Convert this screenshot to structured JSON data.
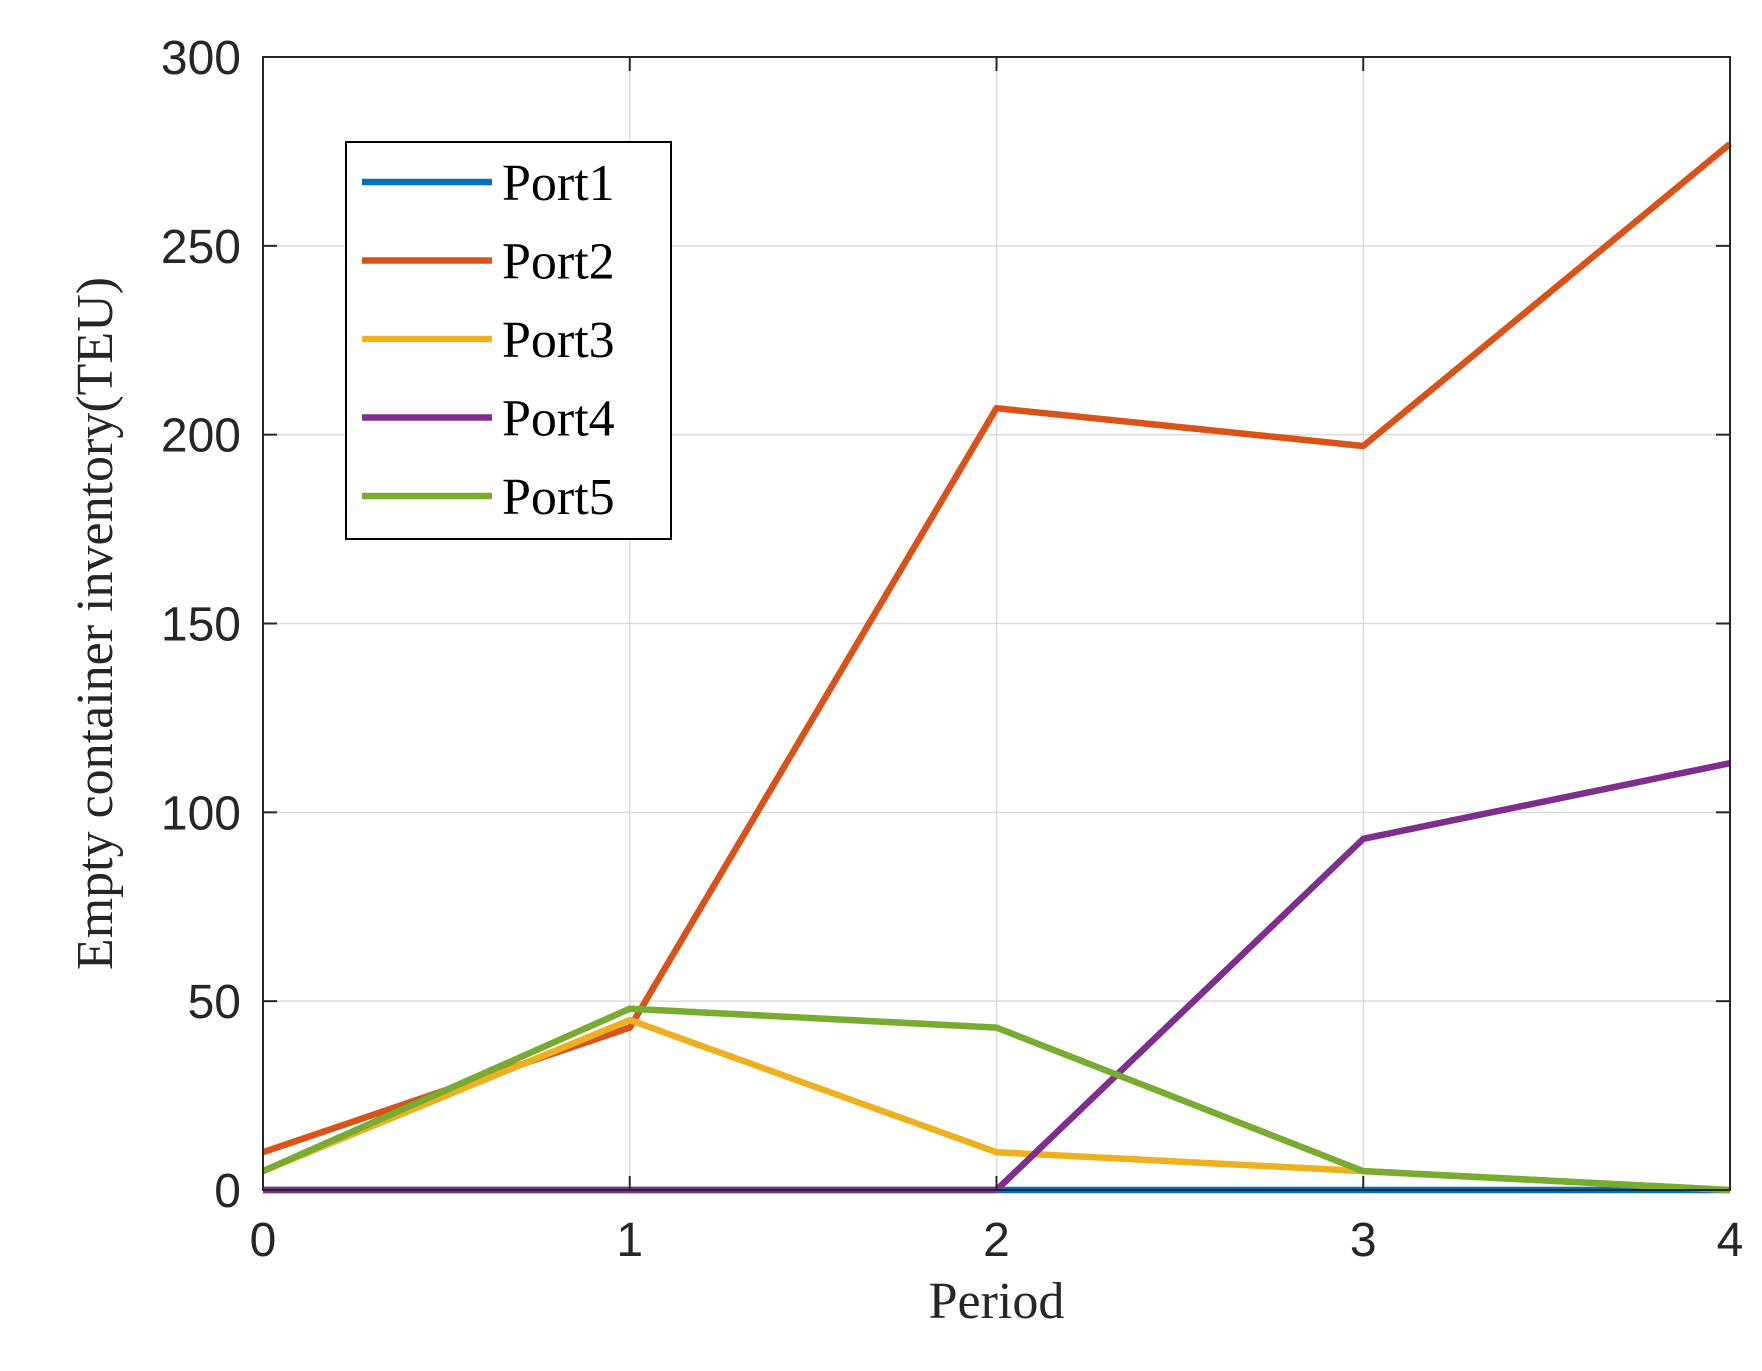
{
  "chart_data": {
    "type": "line",
    "title": "",
    "xlabel": "Period",
    "ylabel": "Empty container inventory(TEU)",
    "x": [
      0,
      1,
      2,
      3,
      4
    ],
    "xlim": [
      0,
      4
    ],
    "ylim": [
      0,
      300
    ],
    "xticks": [
      "0",
      "1",
      "2",
      "3",
      "4"
    ],
    "yticks": [
      "0",
      "50",
      "100",
      "150",
      "200",
      "250",
      "300"
    ],
    "grid": true,
    "legend_position": "top-left",
    "series": [
      {
        "name": "Port1",
        "color": "#0072BD",
        "values": [
          0,
          0,
          0,
          0,
          0
        ]
      },
      {
        "name": "Port2",
        "color": "#D95319",
        "values": [
          10,
          43,
          207,
          197,
          277
        ]
      },
      {
        "name": "Port3",
        "color": "#EDB120",
        "values": [
          5,
          45,
          10,
          5,
          0
        ]
      },
      {
        "name": "Port4",
        "color": "#7E2F8E",
        "values": [
          0,
          0,
          0,
          93,
          113
        ]
      },
      {
        "name": "Port5",
        "color": "#77AC30",
        "values": [
          5,
          48,
          43,
          5,
          0
        ]
      }
    ]
  }
}
